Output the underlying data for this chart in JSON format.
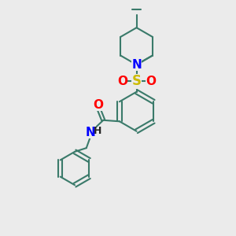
{
  "bg_color": "#ebebeb",
  "bond_color": "#3a7a6a",
  "bond_width": 1.5,
  "N_color": "#0000ff",
  "S_color": "#ccbb00",
  "O_color": "#ff0000",
  "font_size": 10,
  "fig_width": 3.0,
  "fig_height": 3.0,
  "dpi": 100,
  "xlim": [
    0,
    10
  ],
  "ylim": [
    0,
    10
  ]
}
